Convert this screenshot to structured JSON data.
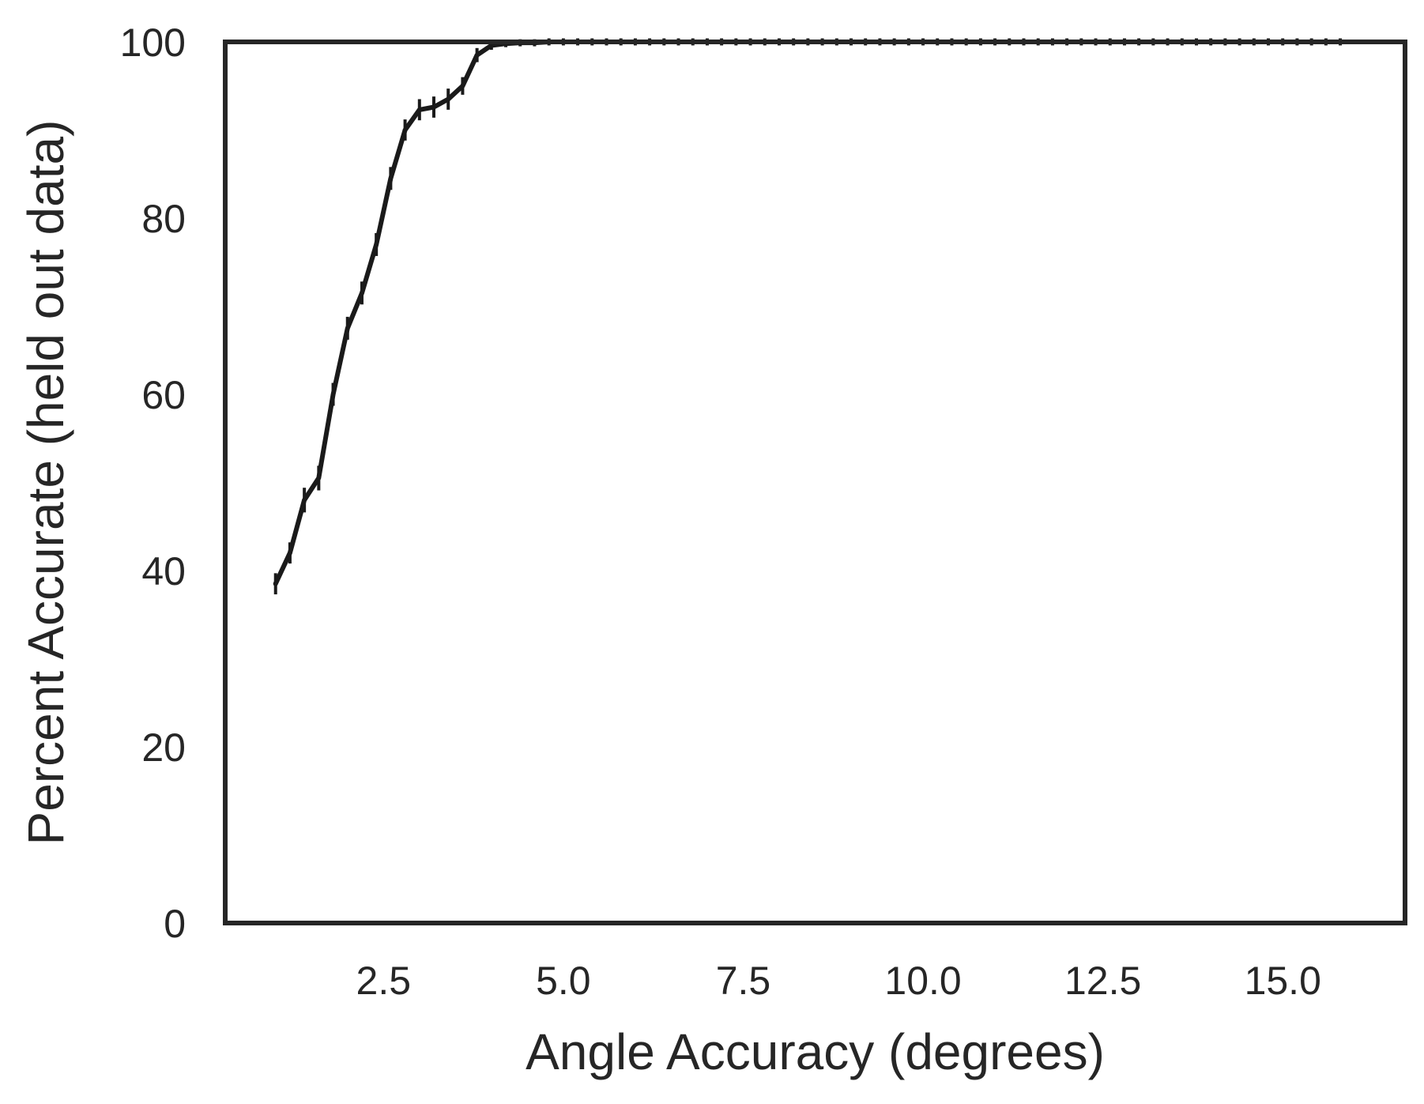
{
  "chart_data": {
    "type": "line",
    "title": "",
    "xlabel": "Angle Accuracy (degrees)",
    "ylabel": "Percent Accurate (held out data)",
    "xlim": [
      0.3,
      16.7
    ],
    "ylim": [
      0,
      100
    ],
    "xticks": [
      "2.5",
      "5.0",
      "7.5",
      "10.0",
      "12.5",
      "15.0"
    ],
    "yticks": [
      "0",
      "20",
      "40",
      "60",
      "80",
      "100"
    ],
    "grid": false,
    "colors": {
      "line": "#1a1a1a",
      "frame": "#262626",
      "text": "#262626"
    },
    "series": [
      {
        "x": [
          1.0,
          1.2,
          1.4,
          1.6,
          1.8,
          2.0,
          2.2,
          2.4,
          2.6,
          2.8,
          3.0,
          3.2,
          3.4,
          3.6,
          3.8,
          4.0,
          4.2,
          4.4,
          4.6,
          4.8,
          5.0,
          5.2,
          5.4,
          5.6,
          5.8,
          6.0,
          6.2,
          6.4,
          6.6,
          6.8,
          7.0,
          7.2,
          7.4,
          7.6,
          7.8,
          8.0,
          8.2,
          8.4,
          8.6,
          8.8,
          9.0,
          9.2,
          9.4,
          9.6,
          9.8,
          10.0,
          10.2,
          10.4,
          10.6,
          10.8,
          11.0,
          11.2,
          11.4,
          11.6,
          11.8,
          12.0,
          12.2,
          12.4,
          12.6,
          12.8,
          13.0,
          13.2,
          13.4,
          13.6,
          13.8,
          14.0,
          14.2,
          14.4,
          14.6,
          14.8,
          15.0,
          15.2,
          15.4,
          15.6,
          15.8
        ],
        "y": [
          38.5,
          42.0,
          48.0,
          50.5,
          60.0,
          67.5,
          71.5,
          77.0,
          84.5,
          90.0,
          92.3,
          92.6,
          93.5,
          95.0,
          98.5,
          99.6,
          99.8,
          99.9,
          99.9,
          100,
          100,
          100,
          100,
          100,
          100,
          100,
          100,
          100,
          100,
          100,
          100,
          100,
          100,
          100,
          100,
          100,
          100,
          100,
          100,
          100,
          100,
          100,
          100,
          100,
          100,
          100,
          100,
          100,
          100,
          100,
          100,
          100,
          100,
          100,
          100,
          100,
          100,
          100,
          100,
          100,
          100,
          100,
          100,
          100,
          100,
          100,
          100,
          100,
          100,
          100,
          100,
          100,
          100,
          100,
          100
        ],
        "error": [
          1.2,
          1.2,
          1.4,
          1.4,
          1.3,
          1.3,
          1.3,
          1.3,
          1.3,
          1.2,
          1.2,
          1.2,
          1.2,
          1.0,
          0.8,
          0.5,
          0.4,
          0.4,
          0.4,
          0.4,
          0.4,
          0.4,
          0.4,
          0.4,
          0.4,
          0.4,
          0.4,
          0.4,
          0.4,
          0.4,
          0.4,
          0.4,
          0.4,
          0.4,
          0.4,
          0.4,
          0.4,
          0.4,
          0.4,
          0.4,
          0.4,
          0.4,
          0.4,
          0.4,
          0.4,
          0.4,
          0.4,
          0.4,
          0.4,
          0.4,
          0.4,
          0.4,
          0.4,
          0.4,
          0.4,
          0.4,
          0.4,
          0.4,
          0.4,
          0.4,
          0.4,
          0.4,
          0.4,
          0.4,
          0.4,
          0.4,
          0.4,
          0.4,
          0.4,
          0.4,
          0.4,
          0.4,
          0.4,
          0.4,
          0.4
        ]
      }
    ]
  }
}
